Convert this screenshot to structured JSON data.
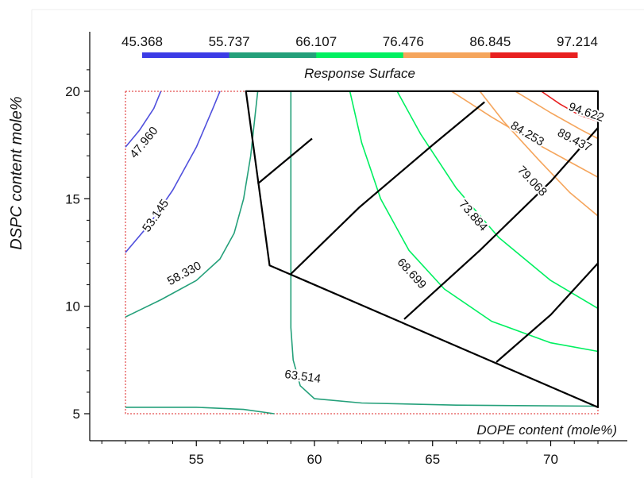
{
  "chart_data": {
    "type": "contour",
    "title": "Response Surface",
    "xlabel": "DOPE content (mole%)",
    "ylabel": "DSPC content mole%",
    "xlim": [
      50,
      72.5
    ],
    "ylim": [
      4,
      21
    ],
    "x_ticks": [
      "55",
      "60",
      "65",
      "70"
    ],
    "x_tick_values": [
      55,
      60,
      65,
      70
    ],
    "y_ticks": [
      "5",
      "10",
      "15",
      "20"
    ],
    "y_tick_values": [
      5,
      10,
      15,
      20
    ],
    "colorbar": {
      "labels": [
        "45.368",
        "55.737",
        "66.107",
        "76.476",
        "86.845",
        "97.214"
      ],
      "segments": [
        {
          "from": 45.368,
          "to": 55.737,
          "color": "#3c3ce6"
        },
        {
          "from": 55.737,
          "to": 66.107,
          "color": "#24a07a"
        },
        {
          "from": 66.107,
          "to": 76.476,
          "color": "#00f060"
        },
        {
          "from": 76.476,
          "to": 86.845,
          "color": "#f5a55c"
        },
        {
          "from": 86.845,
          "to": 97.214,
          "color": "#e82020"
        }
      ]
    },
    "design_region": {
      "x": [
        52,
        72
      ],
      "y": [
        5,
        20
      ],
      "color": "#dd2222"
    },
    "contours": [
      {
        "level": "47.960",
        "color": "#5050dd",
        "label_at": [
          52.8,
          17.6
        ],
        "points": [
          [
            52.0,
            17.4
          ],
          [
            52.6,
            18.2
          ],
          [
            53.2,
            19.2
          ],
          [
            53.5,
            20.0
          ]
        ]
      },
      {
        "level": "53.145",
        "color": "#5050dd",
        "label_at": [
          53.3,
          14.2
        ],
        "points": [
          [
            52.0,
            12.5
          ],
          [
            53.0,
            13.8
          ],
          [
            54.0,
            15.4
          ],
          [
            55.0,
            17.4
          ],
          [
            55.7,
            19.2
          ],
          [
            56.0,
            20.0
          ]
        ]
      },
      {
        "level": "58.330",
        "color": "#24a07a",
        "label_at": [
          54.5,
          11.5
        ],
        "points": [
          [
            52.0,
            9.5
          ],
          [
            53.5,
            10.3
          ],
          [
            55.0,
            11.2
          ],
          [
            56.0,
            12.2
          ],
          [
            56.6,
            13.4
          ],
          [
            57.0,
            15.0
          ],
          [
            57.3,
            17.0
          ],
          [
            57.5,
            19.0
          ],
          [
            57.6,
            20.0
          ]
        ]
      },
      {
        "level": "63.514",
        "color": "#24a07a",
        "label_at": [
          59.5,
          6.7
        ],
        "points": [
          [
            52.0,
            5.3
          ],
          [
            55.0,
            5.3
          ],
          [
            57.0,
            5.2
          ],
          [
            58.3,
            5.0
          ]
        ]
      },
      {
        "color": "#24a07a",
        "points": [
          [
            59.0,
            20.0
          ],
          [
            59.0,
            16.0
          ],
          [
            59.0,
            12.0
          ],
          [
            59.0,
            9.0
          ],
          [
            59.1,
            7.5
          ],
          [
            59.4,
            6.3
          ],
          [
            60.0,
            5.7
          ],
          [
            62.0,
            5.5
          ],
          [
            66.0,
            5.4
          ],
          [
            72.0,
            5.35
          ]
        ]
      },
      {
        "level": "68.699",
        "color": "#00f060",
        "label_at": [
          64.1,
          11.5
        ],
        "points": [
          [
            61.5,
            20.0
          ],
          [
            62.0,
            17.6
          ],
          [
            62.8,
            15.0
          ],
          [
            64.0,
            12.6
          ],
          [
            65.5,
            10.8
          ],
          [
            67.5,
            9.3
          ],
          [
            70.0,
            8.3
          ],
          [
            72.0,
            7.9
          ]
        ]
      },
      {
        "level": "73.884",
        "color": "#00f060",
        "label_at": [
          66.7,
          14.2
        ],
        "points": [
          [
            63.5,
            20.0
          ],
          [
            64.5,
            18.0
          ],
          [
            66.0,
            15.5
          ],
          [
            67.8,
            13.2
          ],
          [
            70.0,
            11.2
          ],
          [
            72.0,
            9.9
          ]
        ]
      },
      {
        "level": "79.068",
        "color": "#f5a55c",
        "label_at": [
          69.2,
          15.8
        ],
        "points": [
          [
            67.0,
            20.0
          ],
          [
            68.0,
            18.6
          ],
          [
            69.5,
            16.8
          ],
          [
            70.8,
            15.3
          ],
          [
            72.0,
            14.2
          ]
        ]
      },
      {
        "level": "84.253",
        "color": "#f5a55c",
        "label_at": [
          69.0,
          18.0
        ],
        "points": [
          [
            65.8,
            20.0
          ],
          [
            67.5,
            18.8
          ],
          [
            69.5,
            17.5
          ],
          [
            71.0,
            16.6
          ],
          [
            72.0,
            16.0
          ]
        ]
      },
      {
        "level": "89.437",
        "color": "#f5a55c",
        "label_at": [
          71.0,
          17.7
        ],
        "points": [
          [
            68.5,
            20.0
          ],
          [
            70.0,
            19.0
          ],
          [
            71.3,
            18.2
          ],
          [
            72.0,
            17.8
          ]
        ]
      },
      {
        "level": "94.622",
        "color": "#e82020",
        "label_at": [
          71.5,
          19.0
        ],
        "points": [
          [
            69.6,
            20.0
          ],
          [
            70.4,
            19.4
          ],
          [
            71.2,
            18.9
          ],
          [
            72.0,
            18.6
          ]
        ]
      }
    ],
    "constraint_polygon": [
      [
        57.1,
        20.0
      ],
      [
        72.0,
        20.0
      ],
      [
        72.0,
        5.3
      ],
      [
        58.1,
        11.9
      ]
    ],
    "hatch_lines": [
      [
        [
          57.6,
          15.7
        ],
        [
          59.9,
          17.8
        ]
      ],
      [
        [
          59.0,
          11.5
        ],
        [
          61.9,
          14.6
        ],
        [
          65.0,
          17.5
        ],
        [
          67.2,
          19.5
        ]
      ],
      [
        [
          63.8,
          9.4
        ],
        [
          67.0,
          12.6
        ],
        [
          70.0,
          15.8
        ],
        [
          72.0,
          18.3
        ]
      ],
      [
        [
          67.7,
          7.4
        ],
        [
          70.0,
          9.6
        ],
        [
          72.0,
          12.0
        ]
      ]
    ]
  }
}
